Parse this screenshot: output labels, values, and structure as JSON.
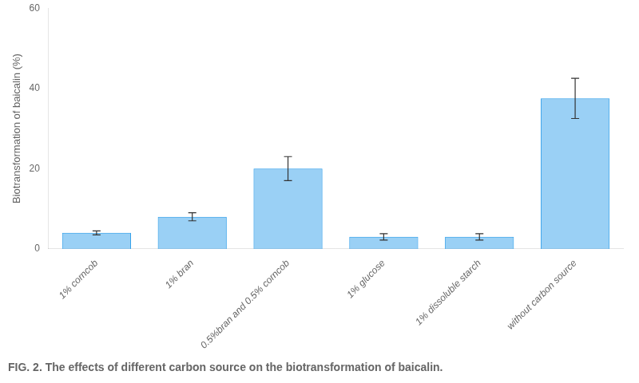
{
  "chart_data": {
    "type": "bar",
    "title": "FIG. 2. The effects of different carbon source on the biotransformation of baicalin.",
    "ylabel": "Biotransformation of baicalin (%)",
    "categories": [
      "1% corncob",
      "1% bran",
      "0.5%bran and 0.5% corncob",
      "1% glucose",
      "1% dissoluble starch",
      "without carbon source"
    ],
    "values": [
      4.0,
      8.0,
      20.0,
      3.0,
      3.0,
      37.5
    ],
    "errors": [
      0.5,
      1.0,
      3.0,
      0.8,
      0.8,
      5.0
    ],
    "ylim": [
      0,
      60
    ],
    "yticks": [
      0,
      20,
      40,
      60
    ],
    "grid": false
  }
}
